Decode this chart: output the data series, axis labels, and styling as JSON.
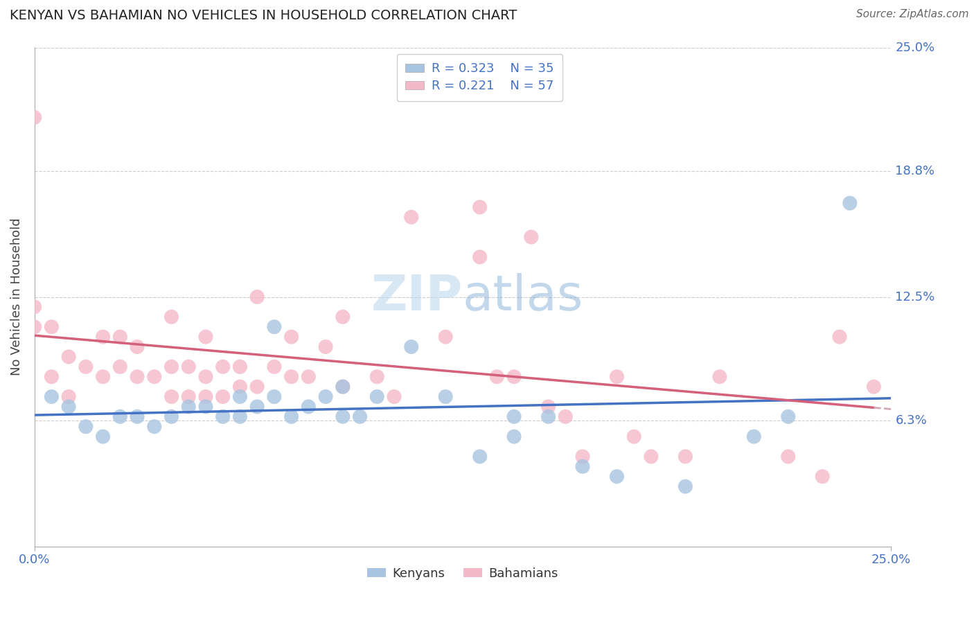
{
  "title": "KENYAN VS BAHAMIAN NO VEHICLES IN HOUSEHOLD CORRELATION CHART",
  "source": "Source: ZipAtlas.com",
  "ylabel": "No Vehicles in Household",
  "xlim": [
    0.0,
    0.25
  ],
  "ylim": [
    0.0,
    0.25
  ],
  "kenyan_color": "#a8c4e0",
  "bahamian_color": "#f4b8c8",
  "kenyan_line_color": "#4472c4",
  "bahamian_line_color": "#d4607a",
  "bahamian_dashed_color": "#d0a8b8",
  "legend_r_kenyan": "0.323",
  "legend_n_kenyan": "35",
  "legend_r_bahamian": "0.221",
  "legend_n_bahamian": "57",
  "hlines": [
    0.25,
    0.188,
    0.125,
    0.063
  ],
  "right_labels": [
    {
      "value": 0.25,
      "label": "25.0%"
    },
    {
      "value": 0.188,
      "label": "18.8%"
    },
    {
      "value": 0.125,
      "label": "12.5%"
    },
    {
      "value": 0.063,
      "label": "6.3%"
    }
  ],
  "kenyan_x": [
    0.005,
    0.01,
    0.015,
    0.02,
    0.025,
    0.03,
    0.035,
    0.04,
    0.045,
    0.05,
    0.055,
    0.06,
    0.06,
    0.065,
    0.07,
    0.07,
    0.075,
    0.08,
    0.085,
    0.09,
    0.09,
    0.095,
    0.1,
    0.11,
    0.12,
    0.13,
    0.14,
    0.14,
    0.15,
    0.16,
    0.17,
    0.19,
    0.21,
    0.22,
    0.238
  ],
  "kenyan_y": [
    0.075,
    0.07,
    0.06,
    0.055,
    0.065,
    0.065,
    0.06,
    0.065,
    0.07,
    0.07,
    0.065,
    0.065,
    0.075,
    0.07,
    0.075,
    0.11,
    0.065,
    0.07,
    0.075,
    0.065,
    0.08,
    0.065,
    0.075,
    0.1,
    0.075,
    0.045,
    0.055,
    0.065,
    0.065,
    0.04,
    0.035,
    0.03,
    0.055,
    0.065,
    0.172
  ],
  "bahamian_x": [
    0.0,
    0.0,
    0.0,
    0.005,
    0.005,
    0.01,
    0.01,
    0.015,
    0.02,
    0.02,
    0.025,
    0.025,
    0.03,
    0.03,
    0.035,
    0.04,
    0.04,
    0.04,
    0.045,
    0.045,
    0.05,
    0.05,
    0.05,
    0.055,
    0.055,
    0.06,
    0.06,
    0.065,
    0.065,
    0.07,
    0.075,
    0.075,
    0.08,
    0.085,
    0.09,
    0.09,
    0.1,
    0.105,
    0.11,
    0.12,
    0.13,
    0.13,
    0.135,
    0.14,
    0.145,
    0.15,
    0.155,
    0.16,
    0.17,
    0.175,
    0.18,
    0.19,
    0.2,
    0.22,
    0.23,
    0.235,
    0.245
  ],
  "bahamian_y": [
    0.11,
    0.12,
    0.215,
    0.085,
    0.11,
    0.075,
    0.095,
    0.09,
    0.085,
    0.105,
    0.09,
    0.105,
    0.085,
    0.1,
    0.085,
    0.075,
    0.09,
    0.115,
    0.075,
    0.09,
    0.075,
    0.085,
    0.105,
    0.075,
    0.09,
    0.08,
    0.09,
    0.08,
    0.125,
    0.09,
    0.085,
    0.105,
    0.085,
    0.1,
    0.08,
    0.115,
    0.085,
    0.075,
    0.165,
    0.105,
    0.145,
    0.17,
    0.085,
    0.085,
    0.155,
    0.07,
    0.065,
    0.045,
    0.085,
    0.055,
    0.045,
    0.045,
    0.085,
    0.045,
    0.035,
    0.105,
    0.08
  ]
}
